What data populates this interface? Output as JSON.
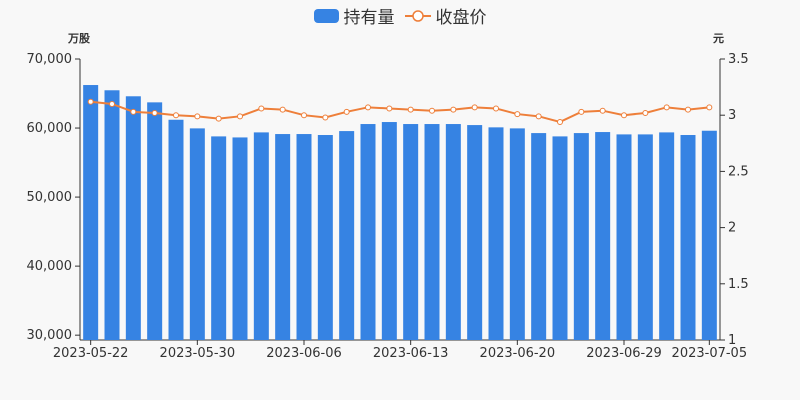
{
  "chart_data": {
    "type": "bar+line",
    "legend": {
      "position": "top-center"
    },
    "x": [
      "2023-05-22",
      "2023-05-24",
      "2023-05-25",
      "2023-05-26",
      "2023-05-29",
      "2023-05-30",
      "2023-05-31",
      "2023-06-01",
      "2023-06-02",
      "2023-06-05",
      "2023-06-06",
      "2023-06-07",
      "2023-06-08",
      "2023-06-09",
      "2023-06-12",
      "2023-06-13",
      "2023-06-14",
      "2023-06-15",
      "2023-06-16",
      "2023-06-19",
      "2023-06-20",
      "2023-06-21",
      "2023-06-26",
      "2023-06-27",
      "2023-06-28",
      "2023-06-29",
      "2023-06-30",
      "2023-07-03",
      "2023-07-04",
      "2023-07-05"
    ],
    "xtick_labels": [
      "2023-05-22",
      "2023-05-30",
      "2023-06-06",
      "2023-06-13",
      "2023-06-20",
      "2023-06-29",
      "2023-07-05"
    ],
    "series": [
      {
        "name": "持有量",
        "type": "bar",
        "axis": "left",
        "color": "#3683e3",
        "values": [
          66230,
          65470,
          64600,
          63720,
          61200,
          59950,
          58790,
          58640,
          59370,
          59130,
          59130,
          58990,
          59560,
          60580,
          60870,
          60580,
          60580,
          60580,
          60430,
          60100,
          59950,
          59270,
          58790,
          59270,
          59420,
          59080,
          59080,
          59370,
          58990,
          59610
        ]
      },
      {
        "name": "收盘价",
        "type": "line",
        "axis": "right",
        "color": "#ee7f3a",
        "values": [
          3.12,
          3.1,
          3.03,
          3.02,
          3.0,
          2.99,
          2.97,
          2.99,
          3.06,
          3.05,
          3.0,
          2.98,
          3.03,
          3.07,
          3.06,
          3.05,
          3.04,
          3.05,
          3.07,
          3.06,
          3.01,
          2.99,
          2.94,
          3.03,
          3.04,
          3.0,
          3.02,
          3.07,
          3.05,
          3.07
        ]
      }
    ],
    "left_axis": {
      "name": "万股",
      "ylim": [
        29300,
        70000
      ],
      "ticks": [
        30000,
        40000,
        50000,
        60000,
        70000
      ],
      "tick_labels": [
        "30,000",
        "40,000",
        "50,000",
        "60,000",
        "70,000"
      ]
    },
    "right_axis": {
      "name": "元",
      "ylim": [
        1,
        3.5
      ],
      "ticks": [
        1,
        1.5,
        2,
        2.5,
        3,
        3.5
      ],
      "tick_labels": [
        "1",
        "1.5",
        "2",
        "2.5",
        "3",
        "3.5"
      ]
    },
    "grid": false
  }
}
